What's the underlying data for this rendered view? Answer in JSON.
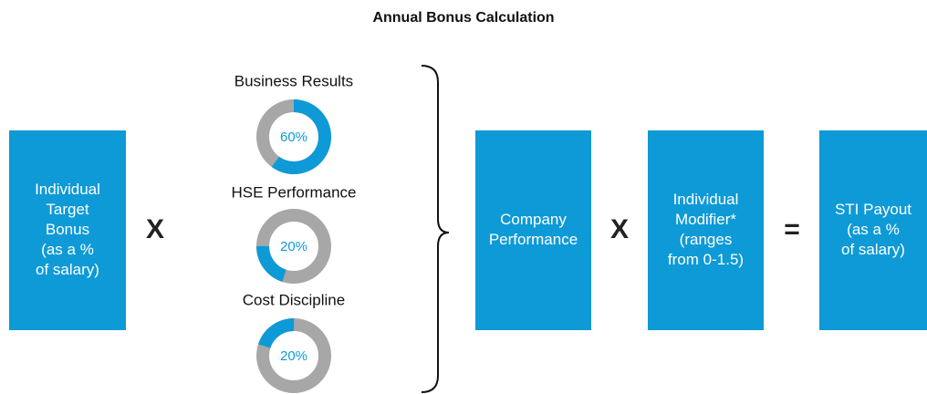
{
  "title": "Annual Bonus Calculation",
  "boxes": [
    {
      "lines": [
        "Individual",
        "Target",
        "Bonus",
        "(as a %",
        "of salary)"
      ]
    },
    {
      "lines": [
        "Company",
        "Performance"
      ]
    },
    {
      "lines": [
        "Individual",
        "Modifier*",
        "(ranges",
        "from 0-1.5)"
      ]
    },
    {
      "lines": [
        "STI Payout",
        "(as a %",
        "of salary)"
      ]
    }
  ],
  "operators": [
    "X",
    "X",
    "="
  ],
  "components": {
    "names": [
      "Business Results",
      "HSE Performance",
      "Cost Discipline"
    ],
    "values": [
      60,
      20,
      20
    ],
    "value_labels": [
      "60%",
      "20%",
      "20%"
    ],
    "color": "#0e9ad6",
    "track_color": "#a7a7a7"
  },
  "box_color": "#0e9ad6"
}
